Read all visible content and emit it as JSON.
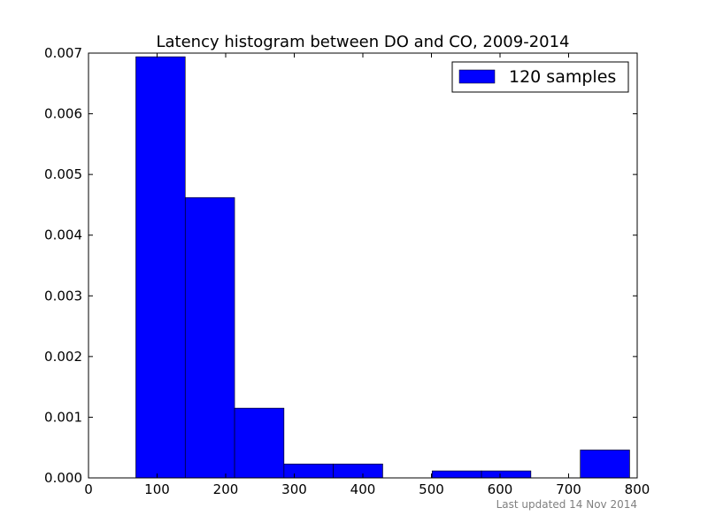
{
  "chart_data": {
    "type": "histogram",
    "title": "Latency histogram between DO and CO, 2009-2014",
    "xlabel": "",
    "ylabel": "",
    "xlim": [
      0,
      800
    ],
    "ylim": [
      0,
      0.007
    ],
    "xticks": [
      0,
      100,
      200,
      300,
      400,
      500,
      600,
      700,
      800
    ],
    "yticks": [
      "0.000",
      "0.001",
      "0.002",
      "0.003",
      "0.004",
      "0.005",
      "0.006",
      "0.007"
    ],
    "grid": false,
    "legend_position": "top-right",
    "series": [
      {
        "name": "120 samples",
        "color": "#0000ff",
        "bins": [
          {
            "x0": 69,
            "x1": 141,
            "density": 0.00694
          },
          {
            "x0": 141,
            "x1": 213,
            "density": 0.00462
          },
          {
            "x0": 213,
            "x1": 285,
            "density": 0.00115
          },
          {
            "x0": 285,
            "x1": 357,
            "density": 0.00023
          },
          {
            "x0": 357,
            "x1": 429,
            "density": 0.00023
          },
          {
            "x0": 429,
            "x1": 501,
            "density": 0.0
          },
          {
            "x0": 501,
            "x1": 573,
            "density": 0.000116
          },
          {
            "x0": 573,
            "x1": 645,
            "density": 0.000116
          },
          {
            "x0": 645,
            "x1": 717,
            "density": 0.0
          },
          {
            "x0": 717,
            "x1": 789,
            "density": 0.00046
          }
        ]
      }
    ]
  },
  "footer": {
    "last_updated": "Last updated 14 Nov 2014"
  }
}
